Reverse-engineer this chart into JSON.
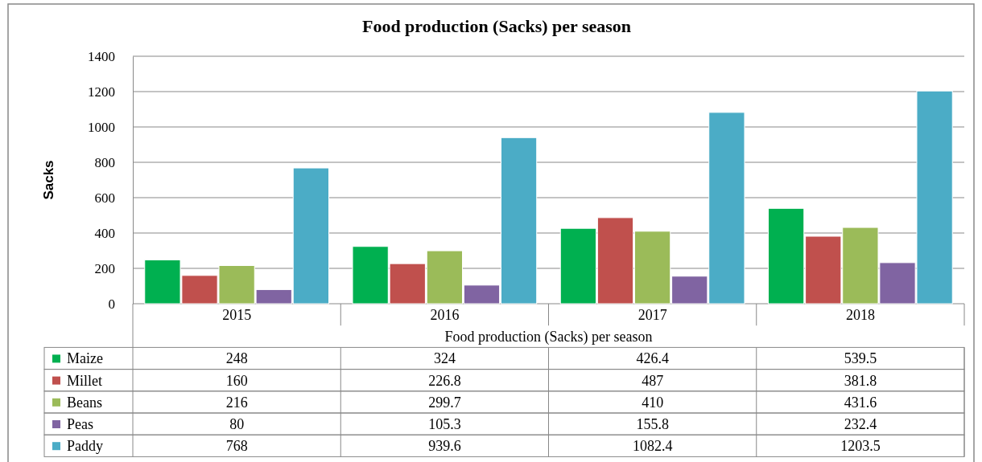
{
  "chart_data": {
    "type": "bar",
    "title": "Food production (Sacks) per season",
    "xlabel": "Food production (Sacks) per season",
    "ylabel": "Sacks",
    "categories": [
      "2015",
      "2016",
      "2017",
      "2018"
    ],
    "series": [
      {
        "name": "Maize",
        "color": "#00b050",
        "values": [
          248,
          324,
          426.4,
          539.5
        ]
      },
      {
        "name": "Millet",
        "color": "#c0504d",
        "values": [
          160,
          226.8,
          487,
          381.8
        ]
      },
      {
        "name": "Beans",
        "color": "#9bbb59",
        "values": [
          216,
          299.7,
          410,
          431.6
        ]
      },
      {
        "name": "Peas",
        "color": "#8064a2",
        "values": [
          80,
          105.3,
          155.8,
          232.4
        ]
      },
      {
        "name": "Paddy",
        "color": "#4bacc6",
        "values": [
          768,
          939.6,
          1082.4,
          1203.5
        ]
      }
    ],
    "ylim": [
      0,
      1400
    ],
    "yticks": [
      0,
      200,
      400,
      600,
      800,
      1000,
      1200,
      1400
    ],
    "grid": "y",
    "legend": "bottom left",
    "data_labels": true
  }
}
